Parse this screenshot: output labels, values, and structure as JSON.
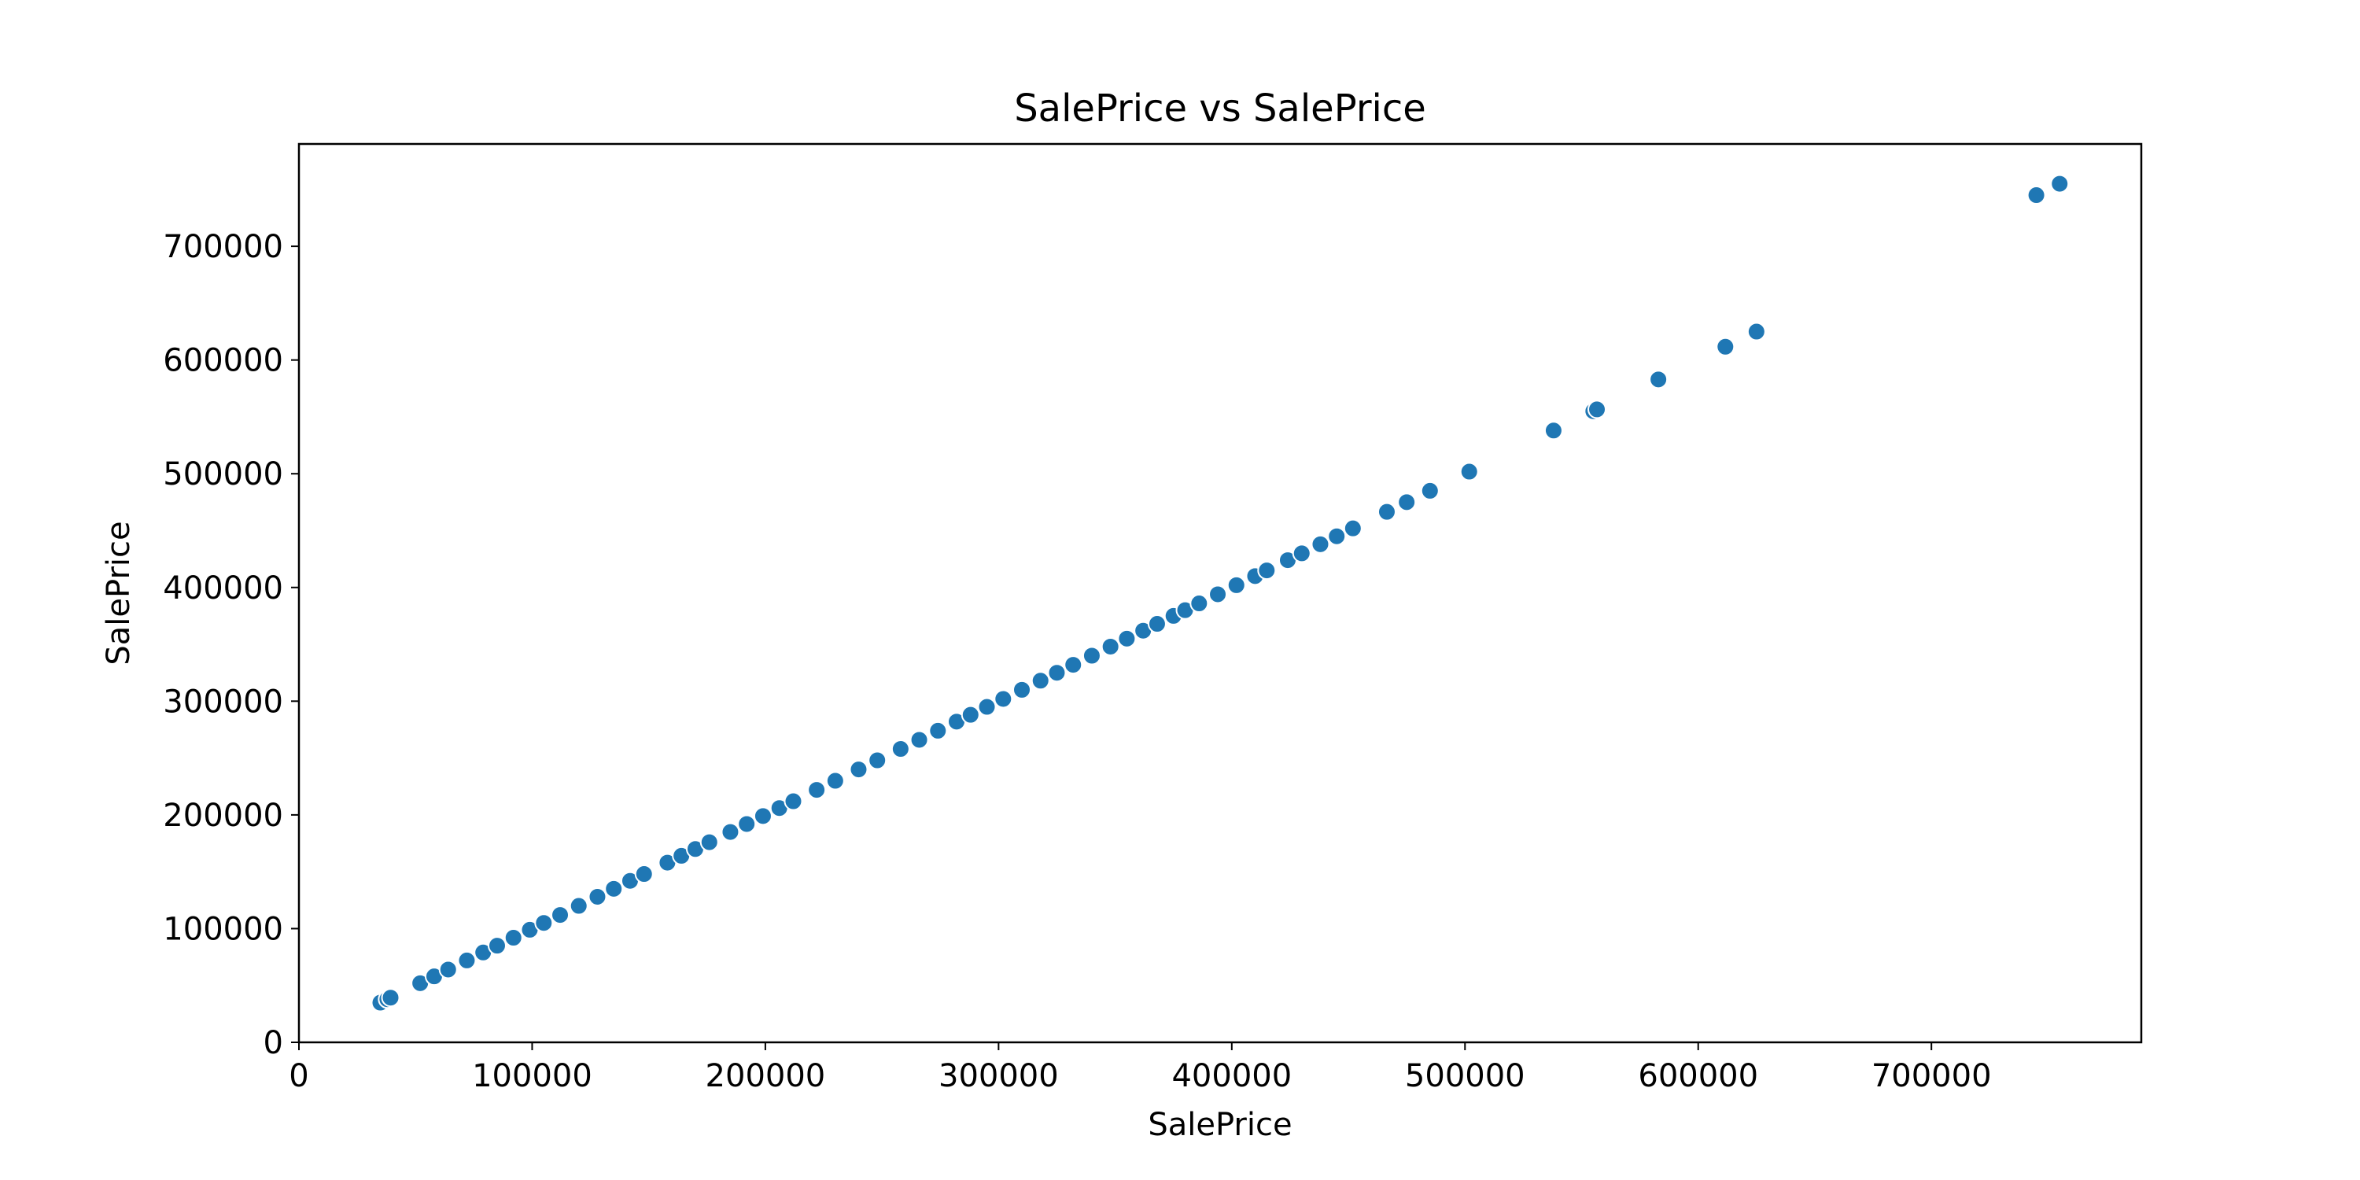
{
  "chart_data": {
    "type": "scatter",
    "title": "SalePrice vs SalePrice",
    "xlabel": "SalePrice",
    "ylabel": "SalePrice",
    "xlim": [
      0,
      790000
    ],
    "ylim": [
      0,
      790000
    ],
    "x_ticks": [
      0,
      100000,
      200000,
      300000,
      400000,
      500000,
      600000,
      700000
    ],
    "y_ticks": [
      0,
      100000,
      200000,
      300000,
      400000,
      500000,
      600000,
      700000
    ],
    "x_tick_labels": [
      "0",
      "100000",
      "200000",
      "300000",
      "400000",
      "500000",
      "600000",
      "700000"
    ],
    "y_tick_labels": [
      "0",
      "100000",
      "200000",
      "300000",
      "400000",
      "500000",
      "600000",
      "700000"
    ],
    "grid": false,
    "marker_color": "#1f77b4",
    "points": [
      {
        "x": 34900,
        "y": 34900
      },
      {
        "x": 37900,
        "y": 37900
      },
      {
        "x": 39300,
        "y": 39300
      },
      {
        "x": 52000,
        "y": 52000
      },
      {
        "x": 58000,
        "y": 58000
      },
      {
        "x": 64000,
        "y": 64000
      },
      {
        "x": 72000,
        "y": 72000
      },
      {
        "x": 79000,
        "y": 79000
      },
      {
        "x": 85000,
        "y": 85000
      },
      {
        "x": 92000,
        "y": 92000
      },
      {
        "x": 99000,
        "y": 99000
      },
      {
        "x": 105000,
        "y": 105000
      },
      {
        "x": 112000,
        "y": 112000
      },
      {
        "x": 120000,
        "y": 120000
      },
      {
        "x": 128000,
        "y": 128000
      },
      {
        "x": 135000,
        "y": 135000
      },
      {
        "x": 142000,
        "y": 142000
      },
      {
        "x": 148000,
        "y": 148000
      },
      {
        "x": 158000,
        "y": 158000
      },
      {
        "x": 164000,
        "y": 164000
      },
      {
        "x": 170000,
        "y": 170000
      },
      {
        "x": 176000,
        "y": 176000
      },
      {
        "x": 185000,
        "y": 185000
      },
      {
        "x": 192000,
        "y": 192000
      },
      {
        "x": 199000,
        "y": 199000
      },
      {
        "x": 206000,
        "y": 206000
      },
      {
        "x": 212000,
        "y": 212000
      },
      {
        "x": 222000,
        "y": 222000
      },
      {
        "x": 230000,
        "y": 230000
      },
      {
        "x": 240000,
        "y": 240000
      },
      {
        "x": 248000,
        "y": 248000
      },
      {
        "x": 258000,
        "y": 258000
      },
      {
        "x": 266000,
        "y": 266000
      },
      {
        "x": 274000,
        "y": 274000
      },
      {
        "x": 282000,
        "y": 282000
      },
      {
        "x": 288000,
        "y": 288000
      },
      {
        "x": 295000,
        "y": 295000
      },
      {
        "x": 302000,
        "y": 302000
      },
      {
        "x": 310000,
        "y": 310000
      },
      {
        "x": 318000,
        "y": 318000
      },
      {
        "x": 325000,
        "y": 325000
      },
      {
        "x": 332000,
        "y": 332000
      },
      {
        "x": 340000,
        "y": 340000
      },
      {
        "x": 348000,
        "y": 348000
      },
      {
        "x": 355000,
        "y": 355000
      },
      {
        "x": 362000,
        "y": 362000
      },
      {
        "x": 368000,
        "y": 368000
      },
      {
        "x": 375000,
        "y": 375000
      },
      {
        "x": 380000,
        "y": 380000
      },
      {
        "x": 386000,
        "y": 386000
      },
      {
        "x": 394000,
        "y": 394000
      },
      {
        "x": 402000,
        "y": 402000
      },
      {
        "x": 410000,
        "y": 410000
      },
      {
        "x": 415000,
        "y": 415000
      },
      {
        "x": 424000,
        "y": 424000
      },
      {
        "x": 430000,
        "y": 430000
      },
      {
        "x": 438000,
        "y": 438000
      },
      {
        "x": 445000,
        "y": 445000
      },
      {
        "x": 451950,
        "y": 451950
      },
      {
        "x": 466500,
        "y": 466500
      },
      {
        "x": 475000,
        "y": 475000
      },
      {
        "x": 485000,
        "y": 485000
      },
      {
        "x": 501837,
        "y": 501837
      },
      {
        "x": 538000,
        "y": 538000
      },
      {
        "x": 555000,
        "y": 555000
      },
      {
        "x": 556581,
        "y": 556581
      },
      {
        "x": 582933,
        "y": 582933
      },
      {
        "x": 611657,
        "y": 611657
      },
      {
        "x": 625000,
        "y": 625000
      },
      {
        "x": 745000,
        "y": 745000
      },
      {
        "x": 755000,
        "y": 755000
      }
    ]
  }
}
